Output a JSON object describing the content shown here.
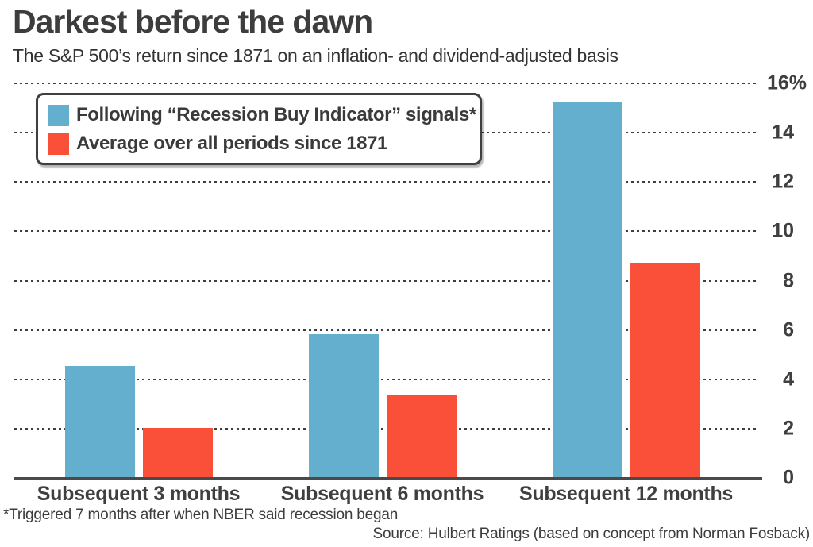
{
  "header": {
    "title": "Darkest before the dawn",
    "subtitle": "The S&P 500’s return since 1871 on an inflation- and dividend-adjusted basis"
  },
  "legend": {
    "items": [
      {
        "label": "Following “Recession Buy Indicator” signals*",
        "color": "#64AECE"
      },
      {
        "label": "Average over all periods since 1871",
        "color": "#FA4F38"
      }
    ]
  },
  "chart_data": {
    "type": "bar",
    "title": "Darkest before the dawn",
    "subtitle": "The S&P 500’s return since 1871 on an inflation- and dividend-adjusted basis",
    "categories": [
      "Subsequent 3 months",
      "Subsequent 6 months",
      "Subsequent 12 months"
    ],
    "series": [
      {
        "name": "Following “Recession Buy Indicator” signals*",
        "color": "#64AECE",
        "values": [
          4.5,
          5.8,
          15.2
        ]
      },
      {
        "name": "Average over all periods since 1871",
        "color": "#FA4F38",
        "values": [
          2.0,
          3.3,
          8.7
        ]
      }
    ],
    "xlabel": "",
    "ylabel": "",
    "y_unit": "%",
    "ylim": [
      0,
      16
    ],
    "yticks": [
      0,
      2,
      4,
      6,
      8,
      10,
      12,
      14,
      16
    ],
    "ytick_labels": [
      "0",
      "2",
      "4",
      "6",
      "8",
      "10",
      "12",
      "14",
      "16%"
    ],
    "grid": "dotted-horizontal",
    "legend_position": "top-left"
  },
  "footer": {
    "footnote": "*Triggered 7 months after when NBER said recession began",
    "source": "Source: Hulbert Ratings (based on concept from Norman Fosback)"
  }
}
